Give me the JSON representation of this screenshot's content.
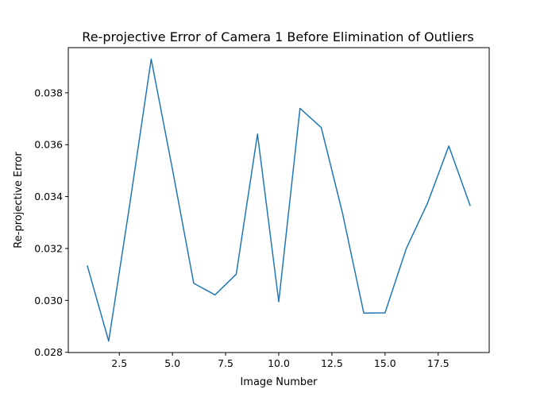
{
  "chart_data": {
    "type": "line",
    "title": "Re-projective Error of Camera 1 Before Elimination of Outliers",
    "xlabel": "Image Number",
    "ylabel": "Re-projective Error",
    "x": [
      1,
      2,
      3,
      4,
      5,
      6,
      7,
      8,
      9,
      10,
      11,
      12,
      13,
      14,
      15,
      16,
      17,
      18,
      19
    ],
    "series": [
      {
        "values": [
          0.03132,
          0.02843,
          0.03375,
          0.0393,
          0.03505,
          0.03066,
          0.03021,
          0.03101,
          0.03641,
          0.02995,
          0.0374,
          0.03666,
          0.03336,
          0.02951,
          0.02952,
          0.032,
          0.03375,
          0.03595,
          0.03366
        ],
        "color": "#1f77b4"
      }
    ],
    "xlim": [
      0.1,
      19.9
    ],
    "ylim": [
      0.02799,
      0.03974
    ],
    "xticks": [
      2.5,
      5.0,
      7.5,
      10.0,
      12.5,
      15.0,
      17.5
    ],
    "xtick_labels": [
      "2.5",
      "5.0",
      "7.5",
      "10.0",
      "12.5",
      "15.0",
      "17.5"
    ],
    "yticks": [
      0.028,
      0.03,
      0.032,
      0.034,
      0.036,
      0.038
    ],
    "ytick_labels": [
      "0.028",
      "0.030",
      "0.032",
      "0.034",
      "0.036",
      "0.038"
    ],
    "grid": false,
    "legend": false
  }
}
